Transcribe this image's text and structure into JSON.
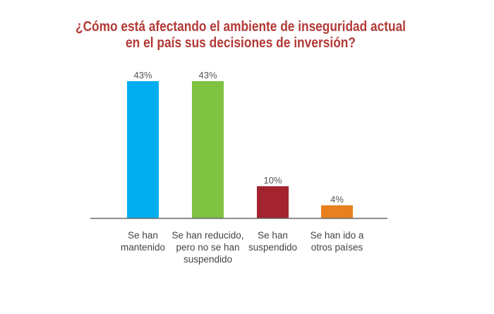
{
  "chart_data": {
    "type": "bar",
    "title": [
      "¿Cómo está afectando el ambiente de inseguridad actual",
      "en el país sus decisiones de inversión?"
    ],
    "categories": [
      [
        "Se han",
        "mantenido"
      ],
      [
        "Se han reducido,",
        "pero no se han",
        "suspendido"
      ],
      [
        "Se han",
        "suspendido"
      ],
      [
        "Se han ido a",
        "otros países"
      ]
    ],
    "values": [
      43,
      43,
      10,
      4
    ],
    "data_labels": [
      "43%",
      "43%",
      "10%",
      "4%"
    ],
    "colors": [
      "#00aeef",
      "#80c242",
      "#a3232f",
      "#e7801f"
    ],
    "unit": "%",
    "xlabel": "",
    "ylabel": "",
    "ylim": [
      0,
      43
    ],
    "grid": false,
    "legend": "none",
    "title_color": "#b23a36",
    "axis_color": "#666666"
  }
}
